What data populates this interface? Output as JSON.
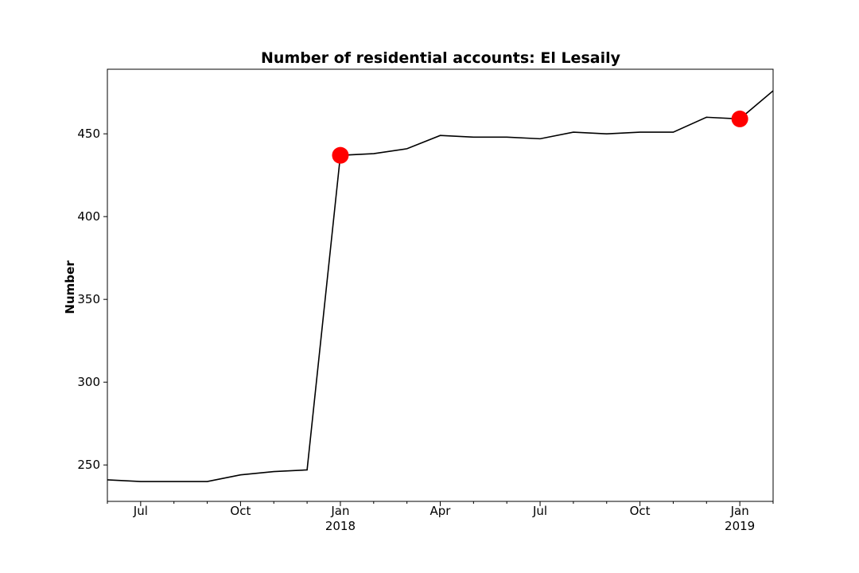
{
  "chart_data": {
    "type": "line",
    "title": "Number of residential accounts: El Lesaily",
    "xlabel": "",
    "ylabel": "Number",
    "x": [
      "2017-06",
      "2017-07",
      "2017-08",
      "2017-09",
      "2017-10",
      "2017-11",
      "2017-12",
      "2018-01",
      "2018-02",
      "2018-03",
      "2018-04",
      "2018-05",
      "2018-06",
      "2018-07",
      "2018-08",
      "2018-09",
      "2018-10",
      "2018-11",
      "2018-12",
      "2019-01",
      "2019-02"
    ],
    "series": [
      {
        "values": [
          241,
          240,
          240,
          240,
          244,
          246,
          247,
          437,
          438,
          441,
          449,
          448,
          448,
          447,
          451,
          450,
          451,
          451,
          460,
          459,
          476
        ],
        "color": "#000000"
      }
    ],
    "highlighted_points": [
      {
        "x": "2018-01",
        "y": 437,
        "color": "#ff0000"
      },
      {
        "x": "2019-01",
        "y": 459,
        "color": "#ff0000"
      }
    ],
    "xlim": [
      "2017-06",
      "2019-02"
    ],
    "ylim": [
      228,
      489
    ],
    "y_ticks": [
      250,
      300,
      350,
      400,
      450
    ],
    "x_ticks": [
      {
        "x": "2017-07",
        "label": "Jul",
        "sublabel": ""
      },
      {
        "x": "2017-10",
        "label": "Oct",
        "sublabel": ""
      },
      {
        "x": "2018-01",
        "label": "Jan",
        "sublabel": "2018"
      },
      {
        "x": "2018-04",
        "label": "Apr",
        "sublabel": ""
      },
      {
        "x": "2018-07",
        "label": "Jul",
        "sublabel": ""
      },
      {
        "x": "2018-10",
        "label": "Oct",
        "sublabel": ""
      },
      {
        "x": "2019-01",
        "label": "Jan",
        "sublabel": "2019"
      }
    ],
    "grid": false,
    "legend": false
  }
}
